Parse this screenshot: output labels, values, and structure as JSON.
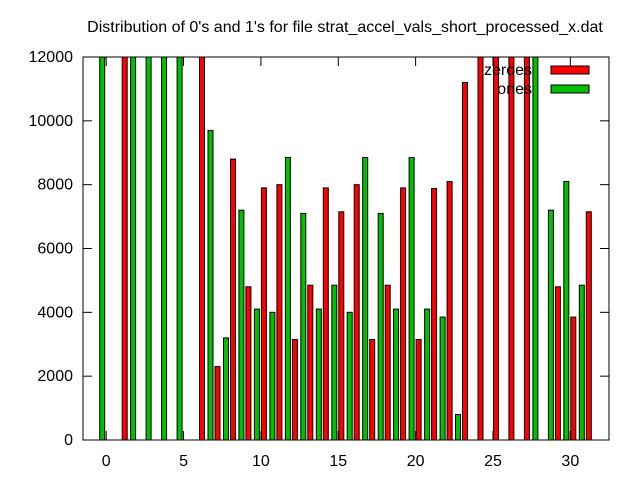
{
  "chart_data": {
    "type": "bar",
    "title": "Distribution of 0's and 1's for file strat_accel_vals_short_processed_x.dat",
    "xlabel": "",
    "ylabel": "",
    "xlim": [
      -1.5,
      32.5
    ],
    "ylim": [
      0,
      12000
    ],
    "xticks": [
      0,
      5,
      10,
      15,
      20,
      25,
      30
    ],
    "yticks": [
      0,
      2000,
      4000,
      6000,
      8000,
      10000,
      12000
    ],
    "grid": false,
    "legend_position": "top-right",
    "x": [
      0,
      1,
      2,
      3,
      4,
      5,
      6,
      7,
      8,
      9,
      10,
      11,
      12,
      13,
      14,
      15,
      16,
      17,
      18,
      19,
      20,
      21,
      22,
      23,
      24,
      25,
      26,
      27,
      28,
      29,
      30,
      31
    ],
    "series": [
      {
        "name": "zeroes",
        "color": "#ff0000",
        "values": [
          0,
          13000,
          0,
          0,
          0,
          0,
          13000,
          2300,
          8800,
          4800,
          7900,
          8000,
          3150,
          4850,
          7900,
          7150,
          8000,
          3150,
          4850,
          7900,
          3150,
          7880,
          8100,
          11200,
          13000,
          13000,
          13000,
          13000,
          0,
          4800,
          3850,
          7150
        ]
      },
      {
        "name": "ones",
        "color": "#00c000",
        "values": [
          13000,
          0,
          13000,
          13000,
          13000,
          13000,
          0,
          9700,
          3200,
          7200,
          4100,
          4000,
          8850,
          7100,
          4100,
          4850,
          4000,
          8850,
          7100,
          4100,
          8850,
          4100,
          3850,
          800,
          0,
          0,
          0,
          0,
          13000,
          7200,
          8100,
          4850
        ]
      }
    ]
  }
}
